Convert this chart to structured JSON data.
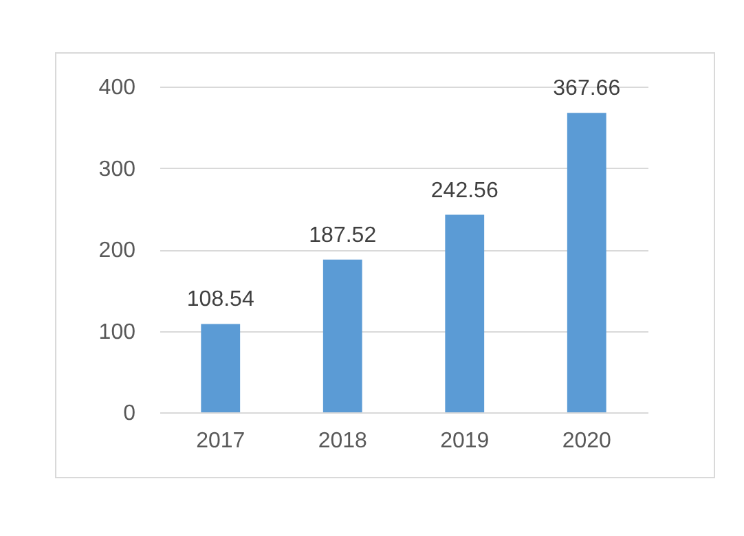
{
  "chart_data": {
    "type": "bar",
    "categories": [
      "2017",
      "2018",
      "2019",
      "2020"
    ],
    "values": [
      108.54,
      187.52,
      242.56,
      367.66
    ],
    "color": "#5b9bd5",
    "ylim": [
      0,
      400
    ],
    "yticks": [
      0,
      100,
      200,
      300,
      400
    ],
    "grid": "y",
    "data_labels": true
  }
}
